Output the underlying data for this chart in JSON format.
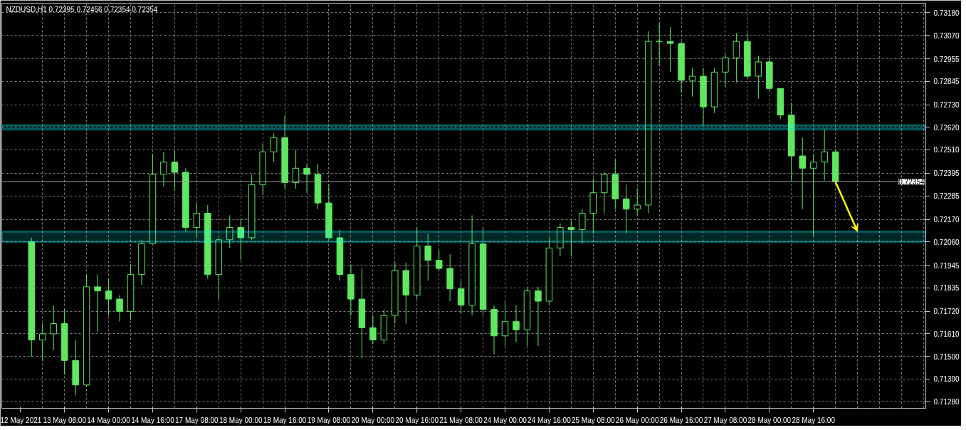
{
  "chart_data": {
    "type": "candlestick",
    "title": "NZDUSD,H1  0.72395 0.72456 0.72354 0.72354",
    "categories": [
      "12 May 2021",
      null,
      null,
      null,
      "13 May 08:00",
      null,
      null,
      null,
      "14 May 00:00",
      null,
      null,
      null,
      "14 May 16:00",
      null,
      null,
      null,
      "17 May 08:00",
      null,
      null,
      null,
      "18 May 00:00",
      null,
      null,
      null,
      "18 May 16:00",
      null,
      null,
      null,
      "19 May 08:00",
      null,
      null,
      null,
      "20 May 00:00",
      null,
      null,
      null,
      "20 May 16:00",
      null,
      null,
      null,
      "21 May 08:00",
      null,
      null,
      null,
      "24 May 00:00",
      null,
      null,
      null,
      "24 May 16:00",
      null,
      null,
      null,
      "25 May 08:00",
      null,
      null,
      null,
      "26 May 00:00",
      null,
      null,
      null,
      "26 May 16:00",
      null,
      null,
      null,
      "27 May 08:00",
      null,
      null,
      null,
      "28 May 00:00",
      null,
      null,
      null,
      "28 May 16:00",
      null,
      null,
      null,
      null,
      null,
      null,
      null,
      null,
      null,
      null
    ],
    "ohlc": [
      null,
      [
        0.7206,
        0.7208,
        0.715,
        0.7158
      ],
      [
        0.7158,
        0.7166,
        0.7148,
        0.7161
      ],
      [
        0.7161,
        0.7175,
        0.7153,
        0.7166
      ],
      [
        0.7166,
        0.7173,
        0.7141,
        0.7148
      ],
      [
        0.7148,
        0.7158,
        0.7131,
        0.7136
      ],
      [
        0.7136,
        0.719,
        0.7135,
        0.7184
      ],
      [
        0.7184,
        0.719,
        0.7162,
        0.7182
      ],
      [
        0.7182,
        0.7188,
        0.717,
        0.7178
      ],
      [
        0.7178,
        0.718,
        0.7167,
        0.7172
      ],
      [
        0.7172,
        0.7195,
        0.7168,
        0.719
      ],
      [
        0.719,
        0.7207,
        0.7185,
        0.7205
      ],
      [
        0.7205,
        0.7249,
        0.7205,
        0.7239
      ],
      [
        0.7239,
        0.725,
        0.7233,
        0.7245
      ],
      [
        0.7245,
        0.7251,
        0.7231,
        0.724
      ],
      [
        0.724,
        0.7242,
        0.7211,
        0.7213
      ],
      [
        0.7213,
        0.7225,
        0.7208,
        0.722
      ],
      [
        0.722,
        0.7224,
        0.7188,
        0.719
      ],
      [
        0.719,
        0.7208,
        0.7178,
        0.7207
      ],
      [
        0.7207,
        0.7219,
        0.7203,
        0.7213
      ],
      [
        0.7213,
        0.7217,
        0.7197,
        0.7208
      ],
      [
        0.7208,
        0.7239,
        0.7207,
        0.7234
      ],
      [
        0.7234,
        0.7254,
        0.7229,
        0.725
      ],
      [
        0.725,
        0.7259,
        0.7245,
        0.7257
      ],
      [
        0.7257,
        0.7268,
        0.7232,
        0.7235
      ],
      [
        0.7235,
        0.7251,
        0.7232,
        0.7242
      ],
      [
        0.7242,
        0.7244,
        0.723,
        0.7239
      ],
      [
        0.7239,
        0.7244,
        0.7222,
        0.7225
      ],
      [
        0.7225,
        0.7234,
        0.7207,
        0.7208
      ],
      [
        0.7208,
        0.7212,
        0.7187,
        0.719
      ],
      [
        0.719,
        0.7195,
        0.717,
        0.7178
      ],
      [
        0.7178,
        0.7193,
        0.7149,
        0.7164
      ],
      [
        0.7164,
        0.717,
        0.7156,
        0.7158
      ],
      [
        0.7158,
        0.7173,
        0.7156,
        0.717
      ],
      [
        0.717,
        0.7196,
        0.7166,
        0.7192
      ],
      [
        0.7192,
        0.7196,
        0.7166,
        0.718
      ],
      [
        0.718,
        0.7213,
        0.7178,
        0.7204
      ],
      [
        0.7204,
        0.721,
        0.7187,
        0.7197
      ],
      [
        0.7197,
        0.7202,
        0.7192,
        0.7193
      ],
      [
        0.7193,
        0.72,
        0.7177,
        0.7183
      ],
      [
        0.7183,
        0.7187,
        0.7171,
        0.7175
      ],
      [
        0.7175,
        0.7219,
        0.717,
        0.7205
      ],
      [
        0.7205,
        0.7213,
        0.717,
        0.7173
      ],
      [
        0.7173,
        0.7175,
        0.7151,
        0.716
      ],
      [
        0.716,
        0.7177,
        0.7155,
        0.7167
      ],
      [
        0.7167,
        0.7175,
        0.7157,
        0.7163
      ],
      [
        0.7163,
        0.7184,
        0.7155,
        0.7182
      ],
      [
        0.7182,
        0.7184,
        0.7155,
        0.7177
      ],
      [
        0.7177,
        0.7208,
        0.7175,
        0.7203
      ],
      [
        0.7203,
        0.7215,
        0.7199,
        0.7213
      ],
      [
        0.7213,
        0.7217,
        0.7199,
        0.7212
      ],
      [
        0.7212,
        0.7222,
        0.7205,
        0.722
      ],
      [
        0.722,
        0.7237,
        0.721,
        0.723
      ],
      [
        0.723,
        0.724,
        0.722,
        0.7239
      ],
      [
        0.7239,
        0.7246,
        0.7222,
        0.7227
      ],
      [
        0.7227,
        0.7234,
        0.721,
        0.7222
      ],
      [
        0.7222,
        0.7232,
        0.7219,
        0.7224
      ],
      [
        0.7224,
        0.7309,
        0.722,
        0.7304
      ],
      [
        0.7304,
        0.7313,
        0.7292,
        0.7304
      ],
      [
        0.7304,
        0.7311,
        0.7289,
        0.7303
      ],
      [
        0.7303,
        0.7304,
        0.7279,
        0.7285
      ],
      [
        0.7285,
        0.7291,
        0.7277,
        0.7287
      ],
      [
        0.7287,
        0.7291,
        0.7263,
        0.7272
      ],
      [
        0.7272,
        0.7291,
        0.7269,
        0.7289
      ],
      [
        0.7289,
        0.7298,
        0.7282,
        0.7296
      ],
      [
        0.7296,
        0.7308,
        0.7284,
        0.7304
      ],
      [
        0.7304,
        0.7308,
        0.7286,
        0.7287
      ],
      [
        0.7287,
        0.7297,
        0.7276,
        0.7294
      ],
      [
        0.7294,
        0.7296,
        0.728,
        0.7281
      ],
      [
        0.7281,
        0.7281,
        0.7266,
        0.7268
      ],
      [
        0.7268,
        0.7274,
        0.7236,
        0.7248
      ],
      [
        0.7248,
        0.7257,
        0.7222,
        0.7242
      ],
      [
        0.7242,
        0.7249,
        0.7209,
        0.7245
      ],
      [
        0.7245,
        0.7261,
        0.7236,
        0.725
      ],
      [
        0.725,
        0.7251,
        0.72354,
        0.72354
      ],
      null,
      null,
      null,
      null,
      null,
      null,
      null,
      null
    ],
    "color": "#5fe85f",
    "ylim": [
      0.71246,
      0.73227
    ],
    "yticks": [
      {
        "value": 0.7318,
        "label": "0.73180"
      },
      {
        "value": 0.7307,
        "label": "0.73070"
      },
      0.72955,
      0.72845,
      {
        "value": 0.7273,
        "label": "0.72730"
      },
      {
        "value": 0.7262,
        "label": "0.72620"
      },
      {
        "value": 0.7251,
        "label": "0.72510"
      },
      0.72395,
      0.72285,
      {
        "value": 0.7217,
        "label": "0.72170"
      },
      {
        "value": 0.7206,
        "label": "0.72060"
      },
      0.71945,
      0.71835,
      {
        "value": 0.7172,
        "label": "0.71720"
      },
      {
        "value": 0.7161,
        "label": "0.71610"
      },
      {
        "value": 0.715,
        "label": "0.71500"
      },
      {
        "value": 0.7139,
        "label": "0.71390"
      },
      {
        "value": 0.7128,
        "label": "0.71280"
      }
    ],
    "grid": true,
    "ref_lines": [
      {
        "axis": "y",
        "value": 0.72354,
        "label": "0.72354",
        "color": "#a0a0a0"
      }
    ],
    "bands": [
      {
        "axis": "y",
        "from": 0.7261,
        "to": 0.7263,
        "color": "#00ffff"
      },
      {
        "axis": "y",
        "from": 0.7206,
        "to": 0.7211,
        "color": "#00ffff"
      }
    ]
  }
}
